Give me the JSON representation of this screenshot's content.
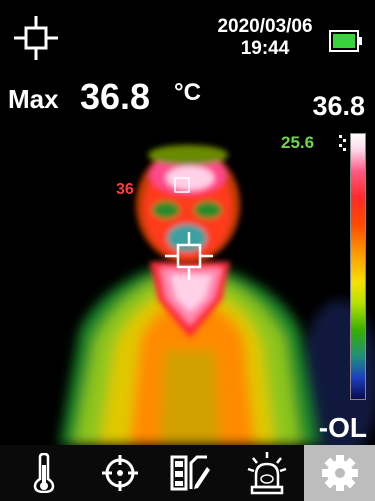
{
  "status": {
    "date": "2020/03/06",
    "time": "19:44",
    "battery_color": "#39d43a"
  },
  "measurement": {
    "max_label": "Max",
    "max_value": "36.8",
    "unit": "°C",
    "spot_label": "36"
  },
  "scale": {
    "max": "36.8",
    "current": "25.6",
    "min": "-OL"
  },
  "toolbar": {
    "items": [
      {
        "icon": "thermometer-icon"
      },
      {
        "icon": "target-icon"
      },
      {
        "icon": "palette-edit-icon"
      },
      {
        "icon": "alarm-icon"
      },
      {
        "icon": "gear-icon",
        "selected": true
      }
    ]
  }
}
